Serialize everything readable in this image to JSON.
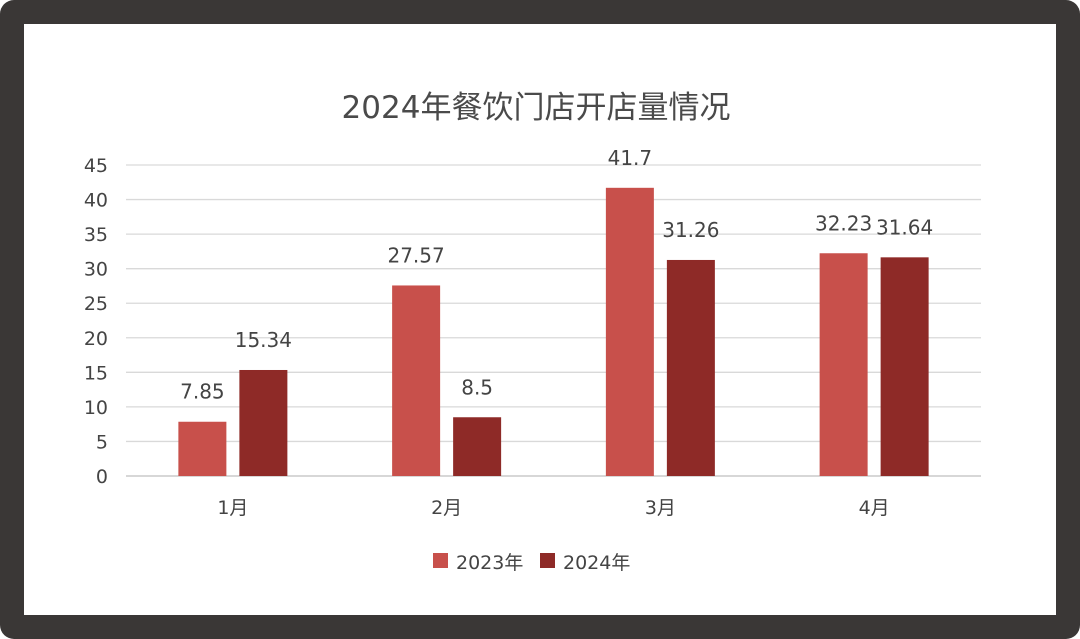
{
  "chart_data": {
    "type": "bar",
    "title": "2024年餐饮门店开店量情况",
    "categories": [
      "1月",
      "2月",
      "3月",
      "4月"
    ],
    "series": [
      {
        "name": "2023年",
        "color": "#c8504b",
        "values": [
          7.85,
          27.57,
          41.7,
          32.23
        ]
      },
      {
        "name": "2024年",
        "color": "#8e2a27",
        "values": [
          15.34,
          8.5,
          31.26,
          31.64
        ]
      }
    ],
    "ylim": [
      0,
      45
    ],
    "yticks": [
      0,
      5,
      10,
      15,
      20,
      25,
      30,
      35,
      40,
      45
    ],
    "grid": true,
    "legend": "bottom",
    "xlabel": "",
    "ylabel": ""
  }
}
